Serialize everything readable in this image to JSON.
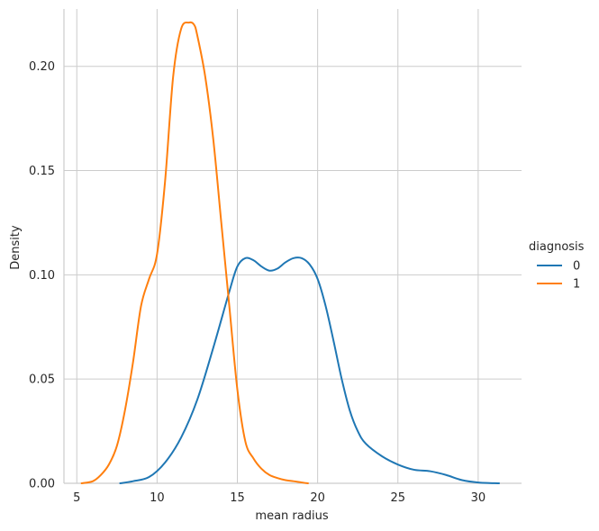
{
  "chart_data": {
    "type": "line",
    "xlabel": "mean radius",
    "ylabel": "Density",
    "xlim": [
      4.2,
      32.7
    ],
    "ylim": [
      0,
      0.2275
    ],
    "xticks": [
      5,
      10,
      15,
      20,
      25,
      30
    ],
    "xtick_labels": [
      "5",
      "10",
      "15",
      "20",
      "25",
      "30"
    ],
    "yticks": [
      0,
      0.05,
      0.1,
      0.15,
      0.2
    ],
    "ytick_labels": [
      "0.00",
      "0.05",
      "0.10",
      "0.15",
      "0.20"
    ],
    "grid": true,
    "legend": {
      "title": "diagnosis",
      "placement": "right"
    },
    "series": [
      {
        "name": "0",
        "color": "#1f77b4",
        "x": [
          7.7,
          8.5,
          9.5,
          10.5,
          11.5,
          12.5,
          13.5,
          14.5,
          15.0,
          15.5,
          16.0,
          16.5,
          17.0,
          17.5,
          18.0,
          18.5,
          19.0,
          19.5,
          20.0,
          20.5,
          21.0,
          21.5,
          22.0,
          22.5,
          23.0,
          24.0,
          25.0,
          26.0,
          27.0,
          28.0,
          29.0,
          30.0,
          31.3
        ],
        "y": [
          0.0,
          0.001,
          0.003,
          0.01,
          0.022,
          0.04,
          0.065,
          0.092,
          0.104,
          0.108,
          0.107,
          0.104,
          0.102,
          0.103,
          0.106,
          0.108,
          0.108,
          0.105,
          0.098,
          0.085,
          0.068,
          0.05,
          0.035,
          0.025,
          0.019,
          0.013,
          0.009,
          0.0065,
          0.0058,
          0.004,
          0.0015,
          0.0004,
          0.0
        ]
      },
      {
        "name": "1",
        "color": "#ff7f0e",
        "x": [
          5.3,
          6.0,
          6.5,
          7.0,
          7.5,
          8.0,
          8.5,
          9.0,
          9.5,
          10.0,
          10.5,
          11.0,
          11.5,
          12.0,
          12.3,
          12.5,
          13.0,
          13.5,
          14.0,
          14.5,
          15.0,
          15.5,
          16.0,
          16.5,
          17.0,
          17.5,
          18.0,
          18.5,
          19.0,
          19.4
        ],
        "y": [
          0.0,
          0.001,
          0.004,
          0.009,
          0.018,
          0.035,
          0.058,
          0.085,
          0.098,
          0.11,
          0.145,
          0.195,
          0.218,
          0.221,
          0.22,
          0.215,
          0.195,
          0.165,
          0.125,
          0.085,
          0.045,
          0.02,
          0.012,
          0.007,
          0.004,
          0.0025,
          0.0015,
          0.001,
          0.0004,
          0.0
        ]
      }
    ]
  }
}
